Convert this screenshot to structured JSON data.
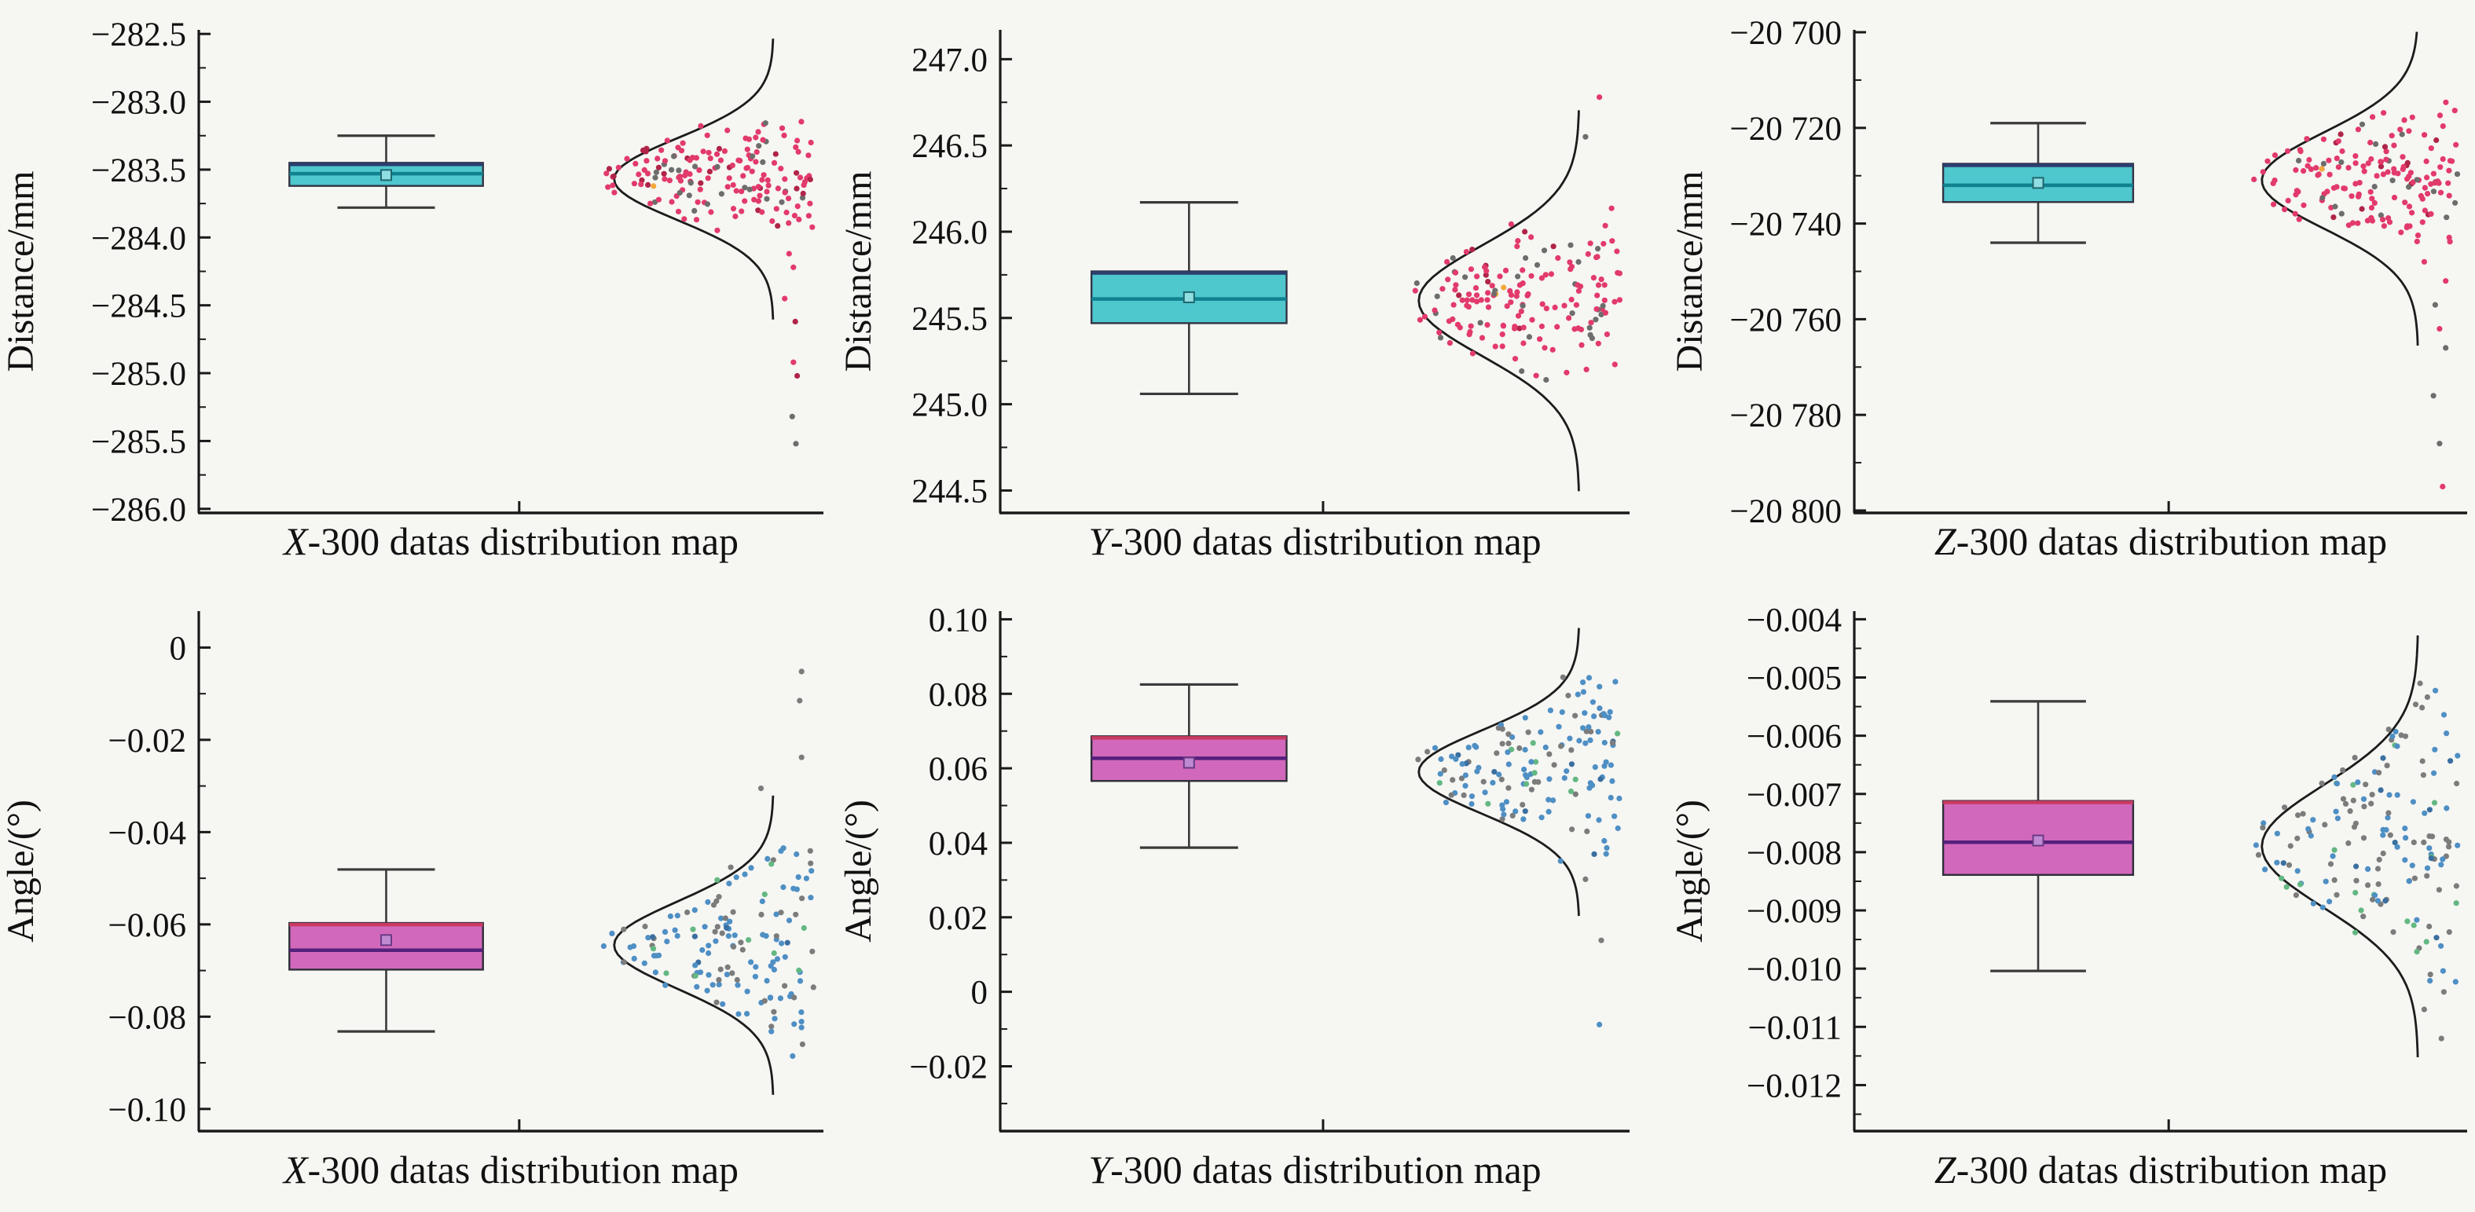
{
  "figure": {
    "background": "#f6f6f3",
    "curve_color": "#1c1c1c",
    "whisker_color": "#3a3a3a",
    "spine_color": "#1a1a1a"
  },
  "chart_data": {
    "type": "box+scatter+normal-curve",
    "panels": [
      {
        "title": {
          "prefix": "X",
          "rest": "-300 datas distribution map"
        },
        "ylabel": "Distance/mm",
        "ylim": [
          -286.03,
          -282.47
        ],
        "yticks": [
          {
            "v": -282.5,
            "label": "−282.5"
          },
          {
            "v": -283.0,
            "label": "−283.0"
          },
          {
            "v": -283.5,
            "label": "−283.5"
          },
          {
            "v": -284.0,
            "label": "−284.0"
          },
          {
            "v": -284.5,
            "label": "−284.5"
          },
          {
            "v": -285.0,
            "label": "−285.0"
          },
          {
            "v": -285.5,
            "label": "−285.5"
          },
          {
            "v": -286.0,
            "label": "−286.0"
          }
        ],
        "box": {
          "whisker_low": -283.78,
          "q1": -283.62,
          "median": -283.53,
          "q3": -283.45,
          "whisker_high": -283.25,
          "mean": -283.54
        },
        "curve": {
          "mean": -283.57,
          "sd": 0.3
        },
        "scatter": {
          "n": 175,
          "mean": -283.55,
          "sd": 0.16,
          "seed": 11,
          "outliers": [
            {
              "v": -284.12,
              "x": 0.945,
              "c": "main"
            },
            {
              "v": -284.22,
              "x": 0.952,
              "c": "main"
            },
            {
              "v": -284.45,
              "x": 0.938,
              "c": "main"
            },
            {
              "v": -284.62,
              "x": 0.955,
              "c": "dark"
            },
            {
              "v": -284.92,
              "x": 0.952,
              "c": "main"
            },
            {
              "v": -285.02,
              "x": 0.958,
              "c": "dark"
            },
            {
              "v": -285.32,
              "x": 0.95,
              "c": "gray"
            },
            {
              "v": -285.52,
              "x": 0.956,
              "c": "gray"
            }
          ]
        },
        "colors": {
          "box_fill": "#4ec7cd",
          "box_edge": "#333344",
          "box_top": "#2b3e6e",
          "median": "#10818f",
          "mean_fill": "#8fdfe2",
          "mean_edge": "#20666e",
          "point": "#e23a6b",
          "point_dark": "#b02448",
          "point_gray": "#6d6d6d",
          "point_accent": "#f2a93b",
          "gray_ratio": 0.13,
          "dark_ratio": 0.1,
          "accent_ratio": 0.012
        }
      },
      {
        "title": {
          "prefix": "Y",
          "rest": "-300 datas distribution map"
        },
        "ylabel": "Distance/mm",
        "ylim": [
          244.37,
          247.17
        ],
        "yticks": [
          {
            "v": 247.0,
            "label": "247.0"
          },
          {
            "v": 246.5,
            "label": "246.5"
          },
          {
            "v": 246.0,
            "label": "246.0"
          },
          {
            "v": 245.5,
            "label": "245.5"
          },
          {
            "v": 245.0,
            "label": "245.0"
          },
          {
            "v": 244.5,
            "label": "244.5"
          }
        ],
        "box": {
          "whisker_low": 245.06,
          "q1": 245.47,
          "median": 245.61,
          "q3": 245.77,
          "whisker_high": 246.17,
          "mean": 245.62
        },
        "curve": {
          "mean": 245.6,
          "sd": 0.32
        },
        "scatter": {
          "n": 170,
          "mean": 245.62,
          "sd": 0.21,
          "seed": 22,
          "outliers": [
            {
              "v": 246.78,
              "x": 0.952,
              "c": "main"
            },
            {
              "v": 246.55,
              "x": 0.93,
              "c": "gray"
            }
          ]
        },
        "colors": {
          "box_fill": "#4ec7cd",
          "box_edge": "#333344",
          "box_top": "#2b3e6e",
          "median": "#10818f",
          "mean_fill": "#8fdfe2",
          "mean_edge": "#20666e",
          "point": "#e23a6b",
          "point_dark": "#b02448",
          "point_gray": "#6d6d6d",
          "point_accent": "#f2a93b",
          "gray_ratio": 0.13,
          "dark_ratio": 0.1,
          "accent_ratio": 0.012
        }
      },
      {
        "title": {
          "prefix": "Z",
          "rest": "-300 datas distribution map"
        },
        "ylabel": "Distance/mm",
        "ylim": [
          -20800.5,
          -20699.5
        ],
        "yticks": [
          {
            "v": -20700,
            "label": "−20 700"
          },
          {
            "v": -20720,
            "label": "−20 720"
          },
          {
            "v": -20740,
            "label": "−20 740"
          },
          {
            "v": -20760,
            "label": "−20 760"
          },
          {
            "v": -20780,
            "label": "−20 780"
          },
          {
            "v": -20800,
            "label": "−20 800"
          }
        ],
        "box": {
          "whisker_low": -20744,
          "q1": -20735.5,
          "median": -20732,
          "q3": -20727.5,
          "whisker_high": -20719,
          "mean": -20731.5
        },
        "curve": {
          "mean": -20731,
          "sd": 10
        },
        "scatter": {
          "n": 170,
          "mean": -20730.5,
          "sd": 6.5,
          "seed": 33,
          "outliers": [
            {
              "v": -20748,
              "x": 0.93,
              "c": "main"
            },
            {
              "v": -20752,
              "x": 0.965,
              "c": "main"
            },
            {
              "v": -20757,
              "x": 0.948,
              "c": "gray"
            },
            {
              "v": -20762,
              "x": 0.955,
              "c": "main"
            },
            {
              "v": -20766,
              "x": 0.965,
              "c": "gray"
            },
            {
              "v": -20776,
              "x": 0.945,
              "c": "gray"
            },
            {
              "v": -20786,
              "x": 0.955,
              "c": "gray"
            },
            {
              "v": -20795,
              "x": 0.96,
              "c": "main"
            }
          ]
        },
        "colors": {
          "box_fill": "#4ec7cd",
          "box_edge": "#333344",
          "box_top": "#2b3e6e",
          "median": "#10818f",
          "mean_fill": "#8fdfe2",
          "mean_edge": "#20666e",
          "point": "#e23a6b",
          "point_dark": "#b02448",
          "point_gray": "#6d6d6d",
          "point_accent": "#f2a93b",
          "gray_ratio": 0.15,
          "dark_ratio": 0.1,
          "accent_ratio": 0.012
        }
      },
      {
        "title": {
          "prefix": "X",
          "rest": "-300 datas distribution map"
        },
        "ylabel": "Angle/(°)",
        "ylim": [
          -0.1048,
          0.0079
        ],
        "yticks": [
          {
            "v": 0,
            "label": "0"
          },
          {
            "v": -0.02,
            "label": "−0.02"
          },
          {
            "v": -0.04,
            "label": "−0.04"
          },
          {
            "v": -0.06,
            "label": "−0.06"
          },
          {
            "v": -0.08,
            "label": "−0.08"
          },
          {
            "v": -0.1,
            "label": "−0.10"
          }
        ],
        "box": {
          "whisker_low": -0.0832,
          "q1": -0.0698,
          "median": -0.0656,
          "q3": -0.0597,
          "whisker_high": -0.0481,
          "mean": -0.0634
        },
        "curve": {
          "mean": -0.0645,
          "sd": 0.0094
        },
        "scatter": {
          "n": 150,
          "mean": -0.066,
          "sd": 0.0085,
          "seed": 44,
          "outliers": [
            {
              "v": -0.0052,
              "x": 0.965,
              "c": "gray"
            },
            {
              "v": -0.0115,
              "x": 0.962,
              "c": "gray"
            },
            {
              "v": -0.0238,
              "x": 0.965,
              "c": "gray"
            },
            {
              "v": -0.0305,
              "x": 0.9,
              "c": "gray"
            }
          ]
        },
        "colors": {
          "box_fill": "#d268bc",
          "box_edge": "#2e2e38",
          "box_top": "#c93b62",
          "median": "#54217b",
          "mean_fill": "#c08ad2",
          "mean_edge": "#6a3a86",
          "point": "#4e8fc4",
          "point_dark": "#3a6fa0",
          "point_gray": "#7c7c7c",
          "point_accent": "#63b882",
          "gray_ratio": 0.25,
          "dark_ratio": 0.06,
          "accent_ratio": 0.08
        }
      },
      {
        "title": {
          "prefix": "Y",
          "rest": "-300 datas distribution map"
        },
        "ylabel": "Angle/(°)",
        "ylim": [
          -0.0374,
          0.1022
        ],
        "yticks": [
          {
            "v": 0.1,
            "label": "0.10"
          },
          {
            "v": 0.08,
            "label": "0.08"
          },
          {
            "v": 0.06,
            "label": "0.06"
          },
          {
            "v": 0.04,
            "label": "0.04"
          },
          {
            "v": 0.02,
            "label": "0.02"
          },
          {
            "v": 0,
            "label": "0"
          },
          {
            "v": -0.02,
            "label": "−0.02"
          }
        ],
        "box": {
          "whisker_low": 0.0387,
          "q1": 0.0566,
          "median": 0.0627,
          "q3": 0.0686,
          "whisker_high": 0.0825,
          "mean": 0.0615
        },
        "curve": {
          "mean": 0.059,
          "sd": 0.0112
        },
        "scatter": {
          "n": 150,
          "mean": 0.061,
          "sd": 0.01,
          "seed": 55,
          "outliers": [
            {
              "v": 0.0302,
              "x": 0.93,
              "c": "gray"
            },
            {
              "v": 0.0138,
              "x": 0.955,
              "c": "gray"
            },
            {
              "v": -0.0088,
              "x": 0.952,
              "c": "main"
            }
          ]
        },
        "colors": {
          "box_fill": "#d268bc",
          "box_edge": "#2e2e38",
          "box_top": "#c93b62",
          "median": "#54217b",
          "mean_fill": "#c08ad2",
          "mean_edge": "#6a3a86",
          "point": "#4e8fc4",
          "point_dark": "#3a6fa0",
          "point_gray": "#7c7c7c",
          "point_accent": "#63b882",
          "gray_ratio": 0.22,
          "dark_ratio": 0.06,
          "accent_ratio": 0.08
        }
      },
      {
        "title": {
          "prefix": "Z",
          "rest": "-300 datas distribution map"
        },
        "ylabel": "Angle/(°)",
        "ylim": [
          -0.01279,
          -0.00386
        ],
        "yticks": [
          {
            "v": -0.004,
            "label": "−0.004"
          },
          {
            "v": -0.005,
            "label": "−0.005"
          },
          {
            "v": -0.006,
            "label": "−0.006"
          },
          {
            "v": -0.007,
            "label": "−0.007"
          },
          {
            "v": -0.008,
            "label": "−0.008"
          },
          {
            "v": -0.009,
            "label": "−0.009"
          },
          {
            "v": -0.01,
            "label": "−0.010"
          },
          {
            "v": -0.011,
            "label": "−0.011"
          },
          {
            "v": -0.012,
            "label": "−0.012"
          }
        ],
        "box": {
          "whisker_low": -0.01004,
          "q1": -0.00839,
          "median": -0.00783,
          "q3": -0.00712,
          "whisker_high": -0.00541,
          "mean": -0.0078
        },
        "curve": {
          "mean": -0.0079,
          "sd": 0.00105
        },
        "scatter": {
          "n": 160,
          "mean": -0.0078,
          "sd": 0.0011,
          "seed": 66,
          "outliers": [
            {
              "v": -0.0101,
              "x": 0.94,
              "c": "gray"
            },
            {
              "v": -0.0104,
              "x": 0.962,
              "c": "gray"
            },
            {
              "v": -0.0107,
              "x": 0.93,
              "c": "gray"
            },
            {
              "v": -0.0112,
              "x": 0.958,
              "c": "gray"
            }
          ]
        },
        "colors": {
          "box_fill": "#d268bc",
          "box_edge": "#2e2e38",
          "box_top": "#c93b62",
          "median": "#54217b",
          "mean_fill": "#c08ad2",
          "mean_edge": "#6a3a86",
          "point": "#4e8fc4",
          "point_dark": "#3a6fa0",
          "point_gray": "#7c7c7c",
          "point_accent": "#63b882",
          "gray_ratio": 0.45,
          "dark_ratio": 0.05,
          "accent_ratio": 0.07
        }
      }
    ]
  }
}
